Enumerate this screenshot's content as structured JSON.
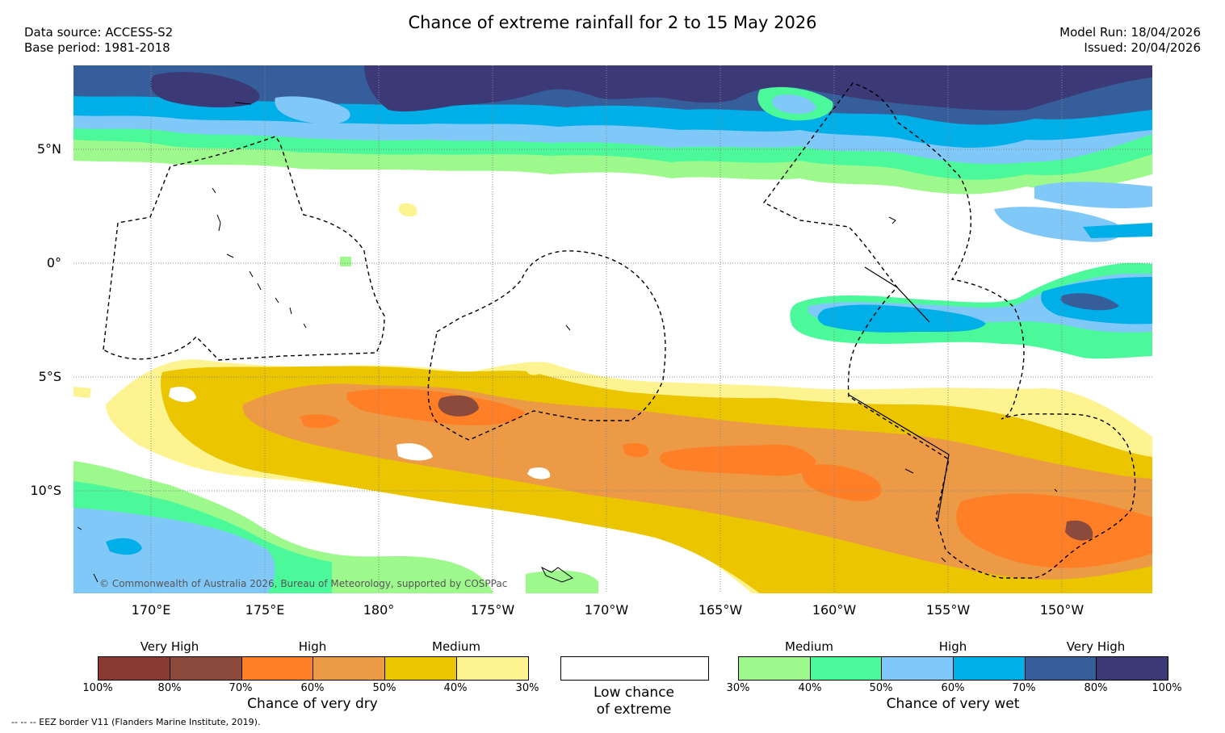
{
  "title": "Chance of extreme rainfall for 2 to 15 May 2026",
  "info_left": {
    "data_source": "Data source: ACCESS-S2",
    "base_period": "Base period: 1981-2018"
  },
  "info_right": {
    "model_run": "Model Run: 18/04/2026",
    "issued": "Issued: 20/04/2026"
  },
  "map": {
    "lat_labels": [
      "5°N",
      "0°",
      "5°S",
      "10°S"
    ],
    "lon_labels": [
      "170°E",
      "175°E",
      "180°",
      "175°W",
      "170°W",
      "165°W",
      "160°W",
      "155°W",
      "150°W"
    ],
    "copyright": "© Commonwealth of Australia 2026, Bureau of Meteorology, supported by COSPPac",
    "colors": {
      "ocean_background": "#ffffff",
      "land_outline": "#000000",
      "eez_border": "#000000",
      "grid": "#888888"
    }
  },
  "legend_dry": {
    "categories": [
      "Very High",
      "High",
      "Medium"
    ],
    "ticks": [
      "100%",
      "80%",
      "70%",
      "60%",
      "50%",
      "40%",
      "30%"
    ],
    "title": "Chance of very dry",
    "colors": [
      "#8b3a33",
      "#8b4a3b",
      "#ff7f27",
      "#ec9a45",
      "#ebc600",
      "#fdf390"
    ]
  },
  "legend_neutral": {
    "line1": "Low chance",
    "line2": "of extreme",
    "color": "#ffffff"
  },
  "legend_wet": {
    "categories": [
      "Medium",
      "High",
      "Very High"
    ],
    "ticks": [
      "30%",
      "40%",
      "50%",
      "60%",
      "70%",
      "80%",
      "100%"
    ],
    "title": "Chance of very wet",
    "colors": [
      "#9ef98d",
      "#4cf99a",
      "#80c8f8",
      "#00aee8",
      "#355e9b",
      "#3c3977"
    ]
  },
  "footnote": "-- -- -- EEZ border V11 (Flanders Marine Institute, 2019)."
}
